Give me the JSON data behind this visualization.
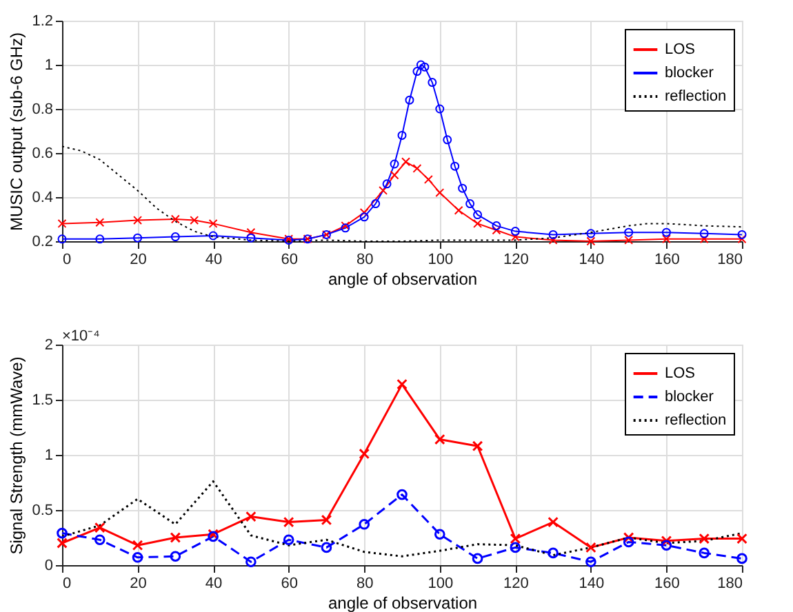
{
  "chart_data": [
    {
      "type": "line",
      "xlabel": "angle of observation",
      "ylabel": "MUSIC output (sub-6 GHz)",
      "xlim": [
        0,
        180
      ],
      "xticks": [
        0,
        20,
        40,
        60,
        80,
        100,
        120,
        140,
        160,
        180
      ],
      "ylim": [
        0.2,
        1.2
      ],
      "yticks": [
        0.2,
        0.4,
        0.6,
        0.8,
        1,
        1.2
      ],
      "grid": true,
      "legend": "top right",
      "series": [
        {
          "name": "LOS",
          "color": "#ff0000",
          "marker": "cross",
          "line_style": "solid",
          "x": [
            0,
            10,
            20,
            30,
            35,
            40,
            50,
            60,
            65,
            70,
            75,
            80,
            85,
            88,
            91,
            94,
            97,
            100,
            105,
            110,
            115,
            120,
            130,
            140,
            150,
            160,
            170,
            180
          ],
          "values": [
            0.28,
            0.285,
            0.295,
            0.3,
            0.295,
            0.28,
            0.24,
            0.21,
            0.21,
            0.23,
            0.27,
            0.33,
            0.43,
            0.5,
            0.56,
            0.53,
            0.48,
            0.42,
            0.34,
            0.28,
            0.25,
            0.22,
            0.205,
            0.2,
            0.205,
            0.21,
            0.21,
            0.21
          ]
        },
        {
          "name": "blocker",
          "color": "#0000ff",
          "marker": "circle",
          "line_style": "solid",
          "x": [
            0,
            10,
            20,
            30,
            40,
            50,
            60,
            65,
            70,
            75,
            80,
            83,
            86,
            88,
            90,
            92,
            94,
            95,
            96,
            98,
            100,
            102,
            104,
            106,
            108,
            110,
            115,
            120,
            130,
            140,
            150,
            160,
            170,
            180
          ],
          "values": [
            0.21,
            0.21,
            0.215,
            0.22,
            0.225,
            0.215,
            0.205,
            0.21,
            0.23,
            0.26,
            0.31,
            0.37,
            0.46,
            0.55,
            0.68,
            0.84,
            0.97,
            1.0,
            0.99,
            0.92,
            0.8,
            0.66,
            0.54,
            0.44,
            0.37,
            0.32,
            0.27,
            0.245,
            0.23,
            0.235,
            0.24,
            0.24,
            0.235,
            0.23
          ]
        },
        {
          "name": "reflection",
          "color": "#000000",
          "marker": "none",
          "line_style": "dotted",
          "x": [
            0,
            5,
            10,
            15,
            20,
            25,
            30,
            35,
            40,
            50,
            60,
            70,
            80,
            90,
            100,
            110,
            120,
            130,
            140,
            150,
            155,
            160,
            170,
            180
          ],
          "values": [
            0.63,
            0.61,
            0.57,
            0.5,
            0.43,
            0.35,
            0.29,
            0.245,
            0.22,
            0.205,
            0.2,
            0.205,
            0.2,
            0.2,
            0.205,
            0.205,
            0.205,
            0.215,
            0.24,
            0.27,
            0.28,
            0.28,
            0.27,
            0.265
          ]
        }
      ]
    },
    {
      "type": "line",
      "xlabel": "angle of observation",
      "ylabel": "Signal Strength (mmWave)",
      "annotations": [
        "×10⁻⁴"
      ],
      "x": [
        0,
        10,
        20,
        30,
        40,
        50,
        60,
        70,
        80,
        90,
        100,
        110,
        120,
        130,
        140,
        150,
        160,
        170,
        180
      ],
      "xlim": [
        0,
        180
      ],
      "xticks": [
        0,
        20,
        40,
        60,
        80,
        100,
        120,
        140,
        160,
        180
      ],
      "ylim": [
        0,
        2
      ],
      "yticks": [
        0,
        0.5,
        1,
        1.5,
        2
      ],
      "grid": true,
      "legend": "top right",
      "series": [
        {
          "name": "LOS",
          "color": "#ff0000",
          "marker": "cross",
          "line_style": "solid",
          "values": [
            0.2,
            0.34,
            0.18,
            0.25,
            0.28,
            0.44,
            0.39,
            0.41,
            1.01,
            1.64,
            1.14,
            1.08,
            0.24,
            0.39,
            0.16,
            0.25,
            0.22,
            0.24,
            0.24
          ]
        },
        {
          "name": "blocker",
          "color": "#0000ff",
          "marker": "circle",
          "line_style": "dashed",
          "values": [
            0.29,
            0.23,
            0.07,
            0.08,
            0.26,
            0.03,
            0.23,
            0.16,
            0.37,
            0.64,
            0.28,
            0.06,
            0.16,
            0.11,
            0.03,
            0.21,
            0.18,
            0.11,
            0.06
          ]
        },
        {
          "name": "reflection",
          "color": "#000000",
          "marker": "none",
          "line_style": "dotted",
          "values": [
            0.26,
            0.36,
            0.6,
            0.37,
            0.76,
            0.27,
            0.18,
            0.23,
            0.12,
            0.08,
            0.13,
            0.19,
            0.18,
            0.09,
            0.16,
            0.25,
            0.2,
            0.22,
            0.29
          ]
        }
      ]
    }
  ]
}
